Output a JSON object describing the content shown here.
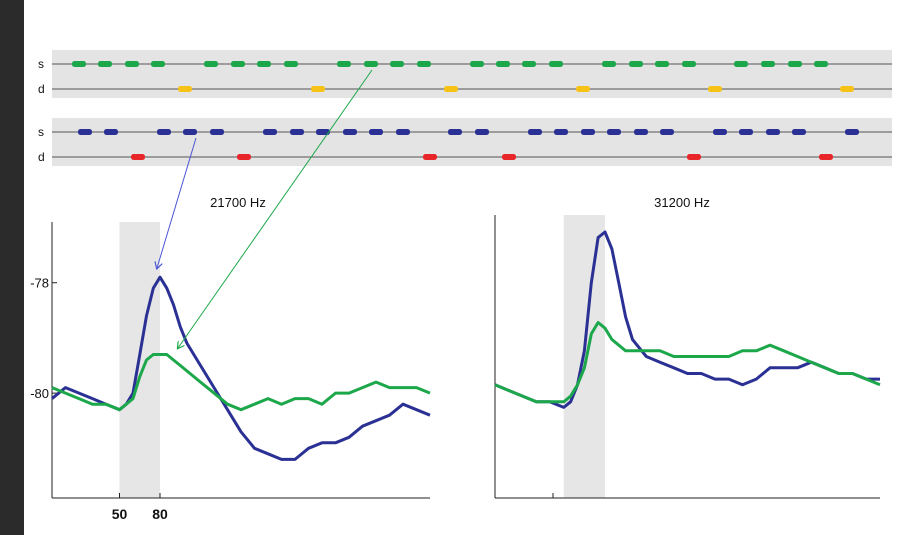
{
  "colors": {
    "standard_green": "#1ca84a",
    "deviant_yellow": "#f6c216",
    "standard_blue": "#2b3194",
    "deviant_red": "#e8262a",
    "green_trace": "#1ca84a",
    "blue_trace": "#2b3194",
    "stim_window": "#e6e6e6",
    "band": "#e4e4e4"
  },
  "sequences": [
    {
      "color_pair": [
        "standard_green",
        "deviant_yellow"
      ],
      "rows": [
        {
          "label": "s",
          "count": 29
        },
        {
          "label": "d",
          "count": 6
        }
      ]
    },
    {
      "color_pair": [
        "standard_blue",
        "deviant_red"
      ],
      "rows": [
        {
          "label": "s",
          "count": 30
        },
        {
          "label": "d",
          "count": 6
        }
      ]
    }
  ],
  "chart_data": [
    {
      "type": "line",
      "title": "21700 Hz",
      "xlabel": "",
      "ylabel": "",
      "x_ticks": [
        "50",
        "80"
      ],
      "y_ticks": [
        "-78",
        "-80"
      ],
      "stim_window": [
        50,
        80
      ],
      "xlim": [
        0,
        280
      ],
      "ylim": [
        -81.9,
        -76.9
      ],
      "series": [
        {
          "color": "blue_trace",
          "x": [
            0,
            10,
            20,
            30,
            40,
            50,
            55,
            60,
            65,
            70,
            75,
            80,
            85,
            90,
            95,
            100,
            110,
            120,
            130,
            140,
            150,
            160,
            170,
            180,
            190,
            200,
            210,
            220,
            230,
            240,
            250,
            260,
            270,
            280
          ],
          "y": [
            -80.1,
            -79.9,
            -80.0,
            -80.1,
            -80.2,
            -80.3,
            -80.2,
            -80.0,
            -79.3,
            -78.6,
            -78.1,
            -77.9,
            -78.1,
            -78.4,
            -78.8,
            -79.1,
            -79.5,
            -79.9,
            -80.3,
            -80.7,
            -81.0,
            -81.1,
            -81.2,
            -81.2,
            -81.0,
            -80.9,
            -80.9,
            -80.8,
            -80.6,
            -80.5,
            -80.4,
            -80.2,
            -80.3,
            -80.4
          ]
        },
        {
          "color": "green_trace",
          "x": [
            0,
            10,
            20,
            30,
            40,
            50,
            55,
            60,
            65,
            70,
            75,
            80,
            85,
            90,
            95,
            100,
            110,
            120,
            130,
            140,
            150,
            160,
            170,
            180,
            190,
            200,
            210,
            220,
            230,
            240,
            250,
            260,
            270,
            280
          ],
          "y": [
            -79.9,
            -80.0,
            -80.1,
            -80.2,
            -80.2,
            -80.3,
            -80.2,
            -80.1,
            -79.7,
            -79.4,
            -79.3,
            -79.3,
            -79.3,
            -79.4,
            -79.5,
            -79.6,
            -79.8,
            -80.0,
            -80.2,
            -80.3,
            -80.2,
            -80.1,
            -80.2,
            -80.1,
            -80.1,
            -80.2,
            -80.0,
            -80.0,
            -79.9,
            -79.8,
            -79.9,
            -79.9,
            -79.9,
            -80.0
          ]
        }
      ]
    },
    {
      "type": "line",
      "title": "31200 Hz",
      "xlabel": "",
      "ylabel": "",
      "stim_window": [
        50,
        80
      ],
      "xlim": [
        0,
        280
      ],
      "ylim": [
        -81.9,
        -76.9
      ],
      "series": [
        {
          "color": "blue_trace",
          "x": [
            0,
            10,
            20,
            30,
            40,
            50,
            55,
            60,
            65,
            70,
            75,
            80,
            85,
            90,
            95,
            100,
            110,
            120,
            130,
            140,
            150,
            160,
            170,
            180,
            190,
            200,
            210,
            220,
            230,
            240,
            250,
            260,
            270,
            280
          ],
          "y": [
            -79.9,
            -80.0,
            -80.1,
            -80.2,
            -80.2,
            -80.3,
            -80.2,
            -79.9,
            -79.3,
            -78.1,
            -77.3,
            -77.2,
            -77.5,
            -78.1,
            -78.7,
            -79.1,
            -79.4,
            -79.5,
            -79.6,
            -79.7,
            -79.7,
            -79.8,
            -79.8,
            -79.9,
            -79.8,
            -79.6,
            -79.6,
            -79.6,
            -79.5,
            -79.6,
            -79.7,
            -79.7,
            -79.8,
            -79.8
          ]
        },
        {
          "color": "green_trace",
          "x": [
            0,
            10,
            20,
            30,
            40,
            50,
            55,
            60,
            65,
            70,
            75,
            80,
            85,
            90,
            95,
            100,
            110,
            120,
            130,
            140,
            150,
            160,
            170,
            180,
            190,
            200,
            210,
            220,
            230,
            240,
            250,
            260,
            270,
            280
          ],
          "y": [
            -79.9,
            -80.0,
            -80.1,
            -80.2,
            -80.2,
            -80.2,
            -80.1,
            -79.9,
            -79.6,
            -79.0,
            -78.8,
            -78.9,
            -79.1,
            -79.2,
            -79.3,
            -79.3,
            -79.3,
            -79.3,
            -79.4,
            -79.4,
            -79.4,
            -79.4,
            -79.4,
            -79.3,
            -79.3,
            -79.2,
            -79.3,
            -79.4,
            -79.5,
            -79.6,
            -79.7,
            -79.7,
            -79.8,
            -79.9
          ]
        }
      ]
    }
  ]
}
